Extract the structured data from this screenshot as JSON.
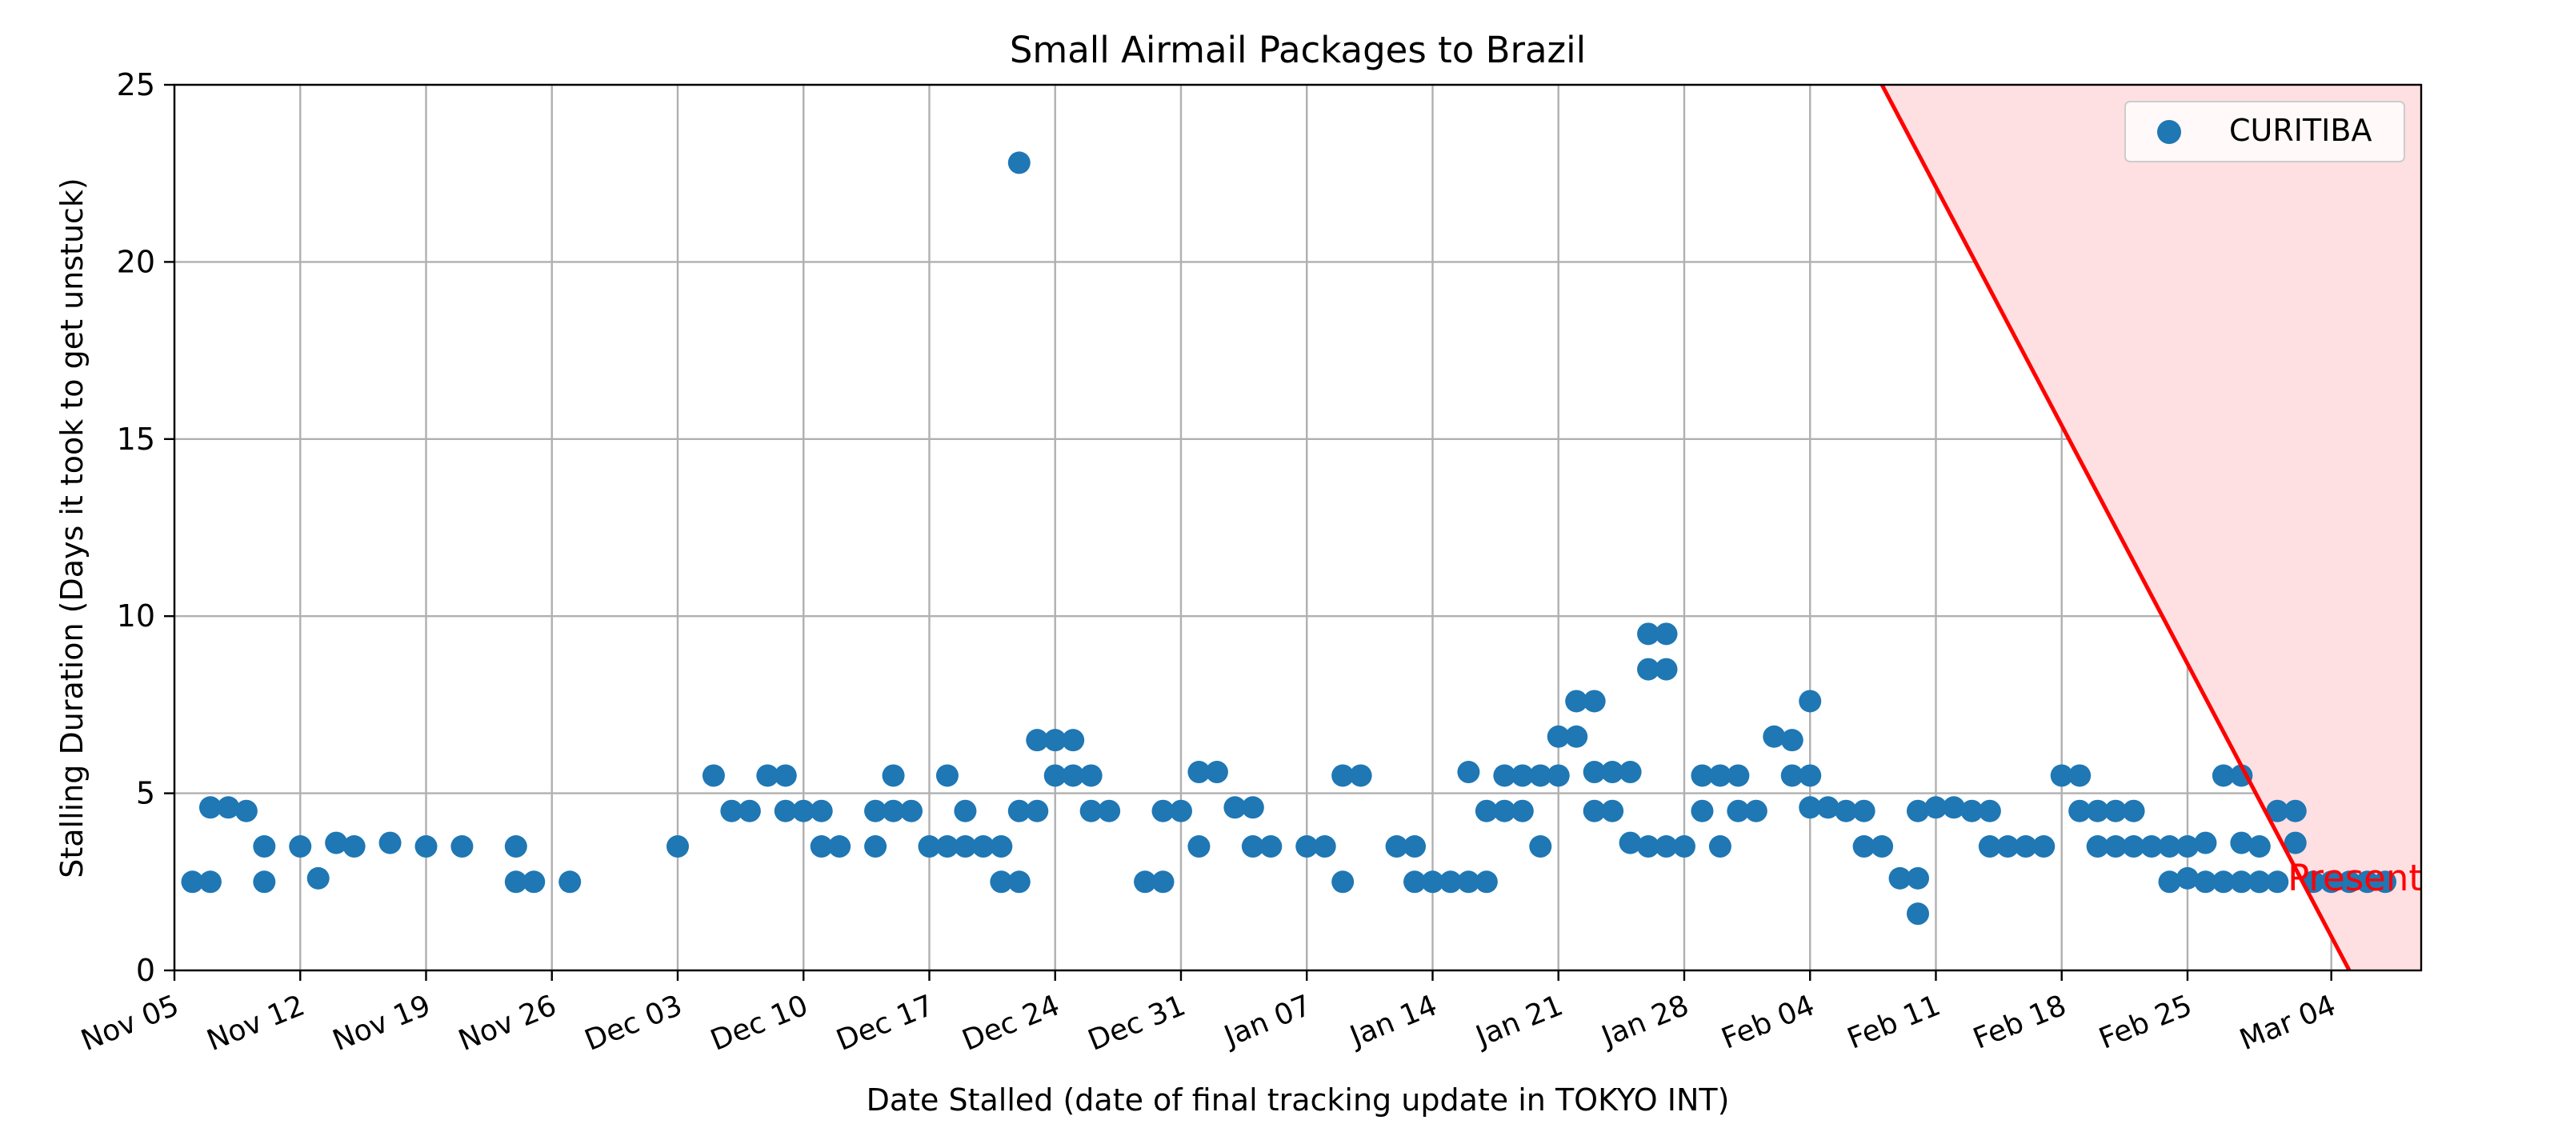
{
  "chart_data": {
    "type": "scatter",
    "title": "Small Airmail Packages to Brazil",
    "xlabel": "Date Stalled (date of final tracking update in TOKYO INT)",
    "ylabel": "Stalling Duration (Days it took to get unstuck)",
    "year_start": 2023,
    "xlim": [
      "2023-11-05",
      "2024-03-09"
    ],
    "ylim": [
      0,
      25
    ],
    "grid": true,
    "legend_position": "top-right",
    "x_ticks": [
      {
        "date": "2023-11-05",
        "label": "Nov 05"
      },
      {
        "date": "2023-11-12",
        "label": "Nov 12"
      },
      {
        "date": "2023-11-19",
        "label": "Nov 19"
      },
      {
        "date": "2023-11-26",
        "label": "Nov 26"
      },
      {
        "date": "2023-12-03",
        "label": "Dec 03"
      },
      {
        "date": "2023-12-10",
        "label": "Dec 10"
      },
      {
        "date": "2023-12-17",
        "label": "Dec 17"
      },
      {
        "date": "2023-12-24",
        "label": "Dec 24"
      },
      {
        "date": "2023-12-31",
        "label": "Dec 31"
      },
      {
        "date": "2024-01-07",
        "label": "Jan 07"
      },
      {
        "date": "2024-01-14",
        "label": "Jan 14"
      },
      {
        "date": "2024-01-21",
        "label": "Jan 21"
      },
      {
        "date": "2024-01-28",
        "label": "Jan 28"
      },
      {
        "date": "2024-02-04",
        "label": "Feb 04"
      },
      {
        "date": "2024-02-11",
        "label": "Feb 11"
      },
      {
        "date": "2024-02-18",
        "label": "Feb 18"
      },
      {
        "date": "2024-02-25",
        "label": "Feb 25"
      },
      {
        "date": "2024-03-04",
        "label": "Mar 04"
      }
    ],
    "y_ticks": [
      0,
      5,
      10,
      15,
      20,
      25
    ],
    "series": [
      {
        "name": "CURITIBA",
        "color": "#1f77b4",
        "points": [
          [
            "2023-11-06",
            2.5
          ],
          [
            "2023-11-07",
            2.5
          ],
          [
            "2023-11-07",
            4.6
          ],
          [
            "2023-11-08",
            4.6
          ],
          [
            "2023-11-09",
            4.5
          ],
          [
            "2023-11-10",
            3.5
          ],
          [
            "2023-11-10",
            2.5
          ],
          [
            "2023-11-12",
            3.5
          ],
          [
            "2023-11-13",
            2.6
          ],
          [
            "2023-11-14",
            3.6
          ],
          [
            "2023-11-15",
            3.5
          ],
          [
            "2023-11-17",
            3.6
          ],
          [
            "2023-11-19",
            3.5
          ],
          [
            "2023-11-21",
            3.5
          ],
          [
            "2023-11-24",
            3.5
          ],
          [
            "2023-11-24",
            2.5
          ],
          [
            "2023-11-25",
            2.5
          ],
          [
            "2023-11-27",
            2.5
          ],
          [
            "2023-12-03",
            3.5
          ],
          [
            "2023-12-05",
            5.5
          ],
          [
            "2023-12-06",
            4.5
          ],
          [
            "2023-12-07",
            4.5
          ],
          [
            "2023-12-08",
            5.5
          ],
          [
            "2023-12-09",
            4.5
          ],
          [
            "2023-12-09",
            5.5
          ],
          [
            "2023-12-10",
            4.5
          ],
          [
            "2023-12-11",
            4.5
          ],
          [
            "2023-12-11",
            3.5
          ],
          [
            "2023-12-12",
            3.5
          ],
          [
            "2023-12-14",
            3.5
          ],
          [
            "2023-12-14",
            4.5
          ],
          [
            "2023-12-15",
            5.5
          ],
          [
            "2023-12-15",
            4.5
          ],
          [
            "2023-12-16",
            4.5
          ],
          [
            "2023-12-17",
            3.5
          ],
          [
            "2023-12-18",
            3.5
          ],
          [
            "2023-12-18",
            5.5
          ],
          [
            "2023-12-19",
            4.5
          ],
          [
            "2023-12-19",
            3.5
          ],
          [
            "2023-12-20",
            3.5
          ],
          [
            "2023-12-21",
            2.5
          ],
          [
            "2023-12-21",
            3.5
          ],
          [
            "2023-12-22",
            2.5
          ],
          [
            "2023-12-22",
            4.5
          ],
          [
            "2023-12-22",
            22.8
          ],
          [
            "2023-12-23",
            4.5
          ],
          [
            "2023-12-23",
            6.5
          ],
          [
            "2023-12-24",
            6.5
          ],
          [
            "2023-12-24",
            5.5
          ],
          [
            "2023-12-25",
            6.5
          ],
          [
            "2023-12-25",
            5.5
          ],
          [
            "2023-12-26",
            5.5
          ],
          [
            "2023-12-26",
            4.5
          ],
          [
            "2023-12-27",
            4.5
          ],
          [
            "2023-12-29",
            2.5
          ],
          [
            "2023-12-30",
            4.5
          ],
          [
            "2023-12-30",
            2.5
          ],
          [
            "2023-12-31",
            4.5
          ],
          [
            "2024-01-01",
            3.5
          ],
          [
            "2024-01-01",
            5.6
          ],
          [
            "2024-01-02",
            5.6
          ],
          [
            "2024-01-03",
            4.6
          ],
          [
            "2024-01-04",
            4.6
          ],
          [
            "2024-01-04",
            3.5
          ],
          [
            "2024-01-05",
            3.5
          ],
          [
            "2024-01-07",
            3.5
          ],
          [
            "2024-01-08",
            3.5
          ],
          [
            "2024-01-09",
            5.5
          ],
          [
            "2024-01-09",
            2.5
          ],
          [
            "2024-01-10",
            5.5
          ],
          [
            "2024-01-12",
            3.5
          ],
          [
            "2024-01-13",
            3.5
          ],
          [
            "2024-01-13",
            2.5
          ],
          [
            "2024-01-14",
            2.5
          ],
          [
            "2024-01-15",
            2.5
          ],
          [
            "2024-01-16",
            5.6
          ],
          [
            "2024-01-16",
            2.5
          ],
          [
            "2024-01-17",
            2.5
          ],
          [
            "2024-01-17",
            4.5
          ],
          [
            "2024-01-18",
            4.5
          ],
          [
            "2024-01-18",
            5.5
          ],
          [
            "2024-01-19",
            5.5
          ],
          [
            "2024-01-19",
            4.5
          ],
          [
            "2024-01-20",
            3.5
          ],
          [
            "2024-01-20",
            5.5
          ],
          [
            "2024-01-21",
            5.5
          ],
          [
            "2024-01-21",
            6.6
          ],
          [
            "2024-01-22",
            6.6
          ],
          [
            "2024-01-22",
            7.6
          ],
          [
            "2024-01-23",
            7.6
          ],
          [
            "2024-01-23",
            5.6
          ],
          [
            "2024-01-23",
            4.5
          ],
          [
            "2024-01-24",
            4.5
          ],
          [
            "2024-01-24",
            5.6
          ],
          [
            "2024-01-25",
            5.6
          ],
          [
            "2024-01-25",
            3.6
          ],
          [
            "2024-01-26",
            3.5
          ],
          [
            "2024-01-26",
            9.5
          ],
          [
            "2024-01-27",
            9.5
          ],
          [
            "2024-01-26",
            8.5
          ],
          [
            "2024-01-27",
            8.5
          ],
          [
            "2024-01-27",
            3.5
          ],
          [
            "2024-01-28",
            3.5
          ],
          [
            "2024-01-29",
            5.5
          ],
          [
            "2024-01-29",
            4.5
          ],
          [
            "2024-01-30",
            5.5
          ],
          [
            "2024-01-30",
            3.5
          ],
          [
            "2024-01-31",
            5.5
          ],
          [
            "2024-01-31",
            4.5
          ],
          [
            "2024-02-01",
            4.5
          ],
          [
            "2024-02-02",
            6.6
          ],
          [
            "2024-02-03",
            6.5
          ],
          [
            "2024-02-03",
            5.5
          ],
          [
            "2024-02-04",
            5.5
          ],
          [
            "2024-02-04",
            7.6
          ],
          [
            "2024-02-04",
            4.6
          ],
          [
            "2024-02-05",
            4.6
          ],
          [
            "2024-02-06",
            4.5
          ],
          [
            "2024-02-07",
            4.5
          ],
          [
            "2024-02-07",
            3.5
          ],
          [
            "2024-02-08",
            3.5
          ],
          [
            "2024-02-09",
            2.6
          ],
          [
            "2024-02-10",
            2.6
          ],
          [
            "2024-02-10",
            1.6
          ],
          [
            "2024-02-10",
            4.5
          ],
          [
            "2024-02-11",
            4.6
          ],
          [
            "2024-02-12",
            4.6
          ],
          [
            "2024-02-13",
            4.5
          ],
          [
            "2024-02-14",
            4.5
          ],
          [
            "2024-02-14",
            3.5
          ],
          [
            "2024-02-15",
            3.5
          ],
          [
            "2024-02-16",
            3.5
          ],
          [
            "2024-02-17",
            3.5
          ],
          [
            "2024-02-18",
            5.5
          ],
          [
            "2024-02-19",
            5.5
          ],
          [
            "2024-02-19",
            4.5
          ],
          [
            "2024-02-20",
            4.5
          ],
          [
            "2024-02-20",
            3.5
          ],
          [
            "2024-02-21",
            3.5
          ],
          [
            "2024-02-21",
            4.5
          ],
          [
            "2024-02-22",
            4.5
          ],
          [
            "2024-02-22",
            3.5
          ],
          [
            "2024-02-23",
            3.5
          ],
          [
            "2024-02-24",
            3.5
          ],
          [
            "2024-02-25",
            3.5
          ],
          [
            "2024-02-26",
            2.5
          ],
          [
            "2024-02-27",
            2.5
          ],
          [
            "2024-02-28",
            2.5
          ],
          [
            "2024-02-28",
            3.6
          ],
          [
            "2024-02-29",
            3.5
          ],
          [
            "2024-02-29",
            2.5
          ],
          [
            "2024-03-01",
            2.5
          ],
          [
            "2024-03-01",
            4.5
          ],
          [
            "2024-03-02",
            4.5
          ],
          [
            "2024-03-02",
            3.6
          ],
          [
            "2024-03-03",
            2.5
          ],
          [
            "2024-03-04",
            2.5
          ],
          [
            "2024-03-05",
            2.5
          ],
          [
            "2024-03-06",
            2.5
          ],
          [
            "2024-03-07",
            2.5
          ],
          [
            "2024-02-24",
            2.5
          ],
          [
            "2024-02-25",
            2.6
          ],
          [
            "2024-02-26",
            3.6
          ],
          [
            "2024-02-27",
            5.5
          ],
          [
            "2024-02-28",
            5.5
          ],
          [
            "2024-02-29",
            2.5
          ]
        ]
      }
    ],
    "reference_line": {
      "label": "Present",
      "color": "#ff0000",
      "fill_color": "#ffe0e2",
      "from": [
        "2024-02-08",
        25
      ],
      "to": [
        "2024-03-05",
        0
      ]
    }
  }
}
